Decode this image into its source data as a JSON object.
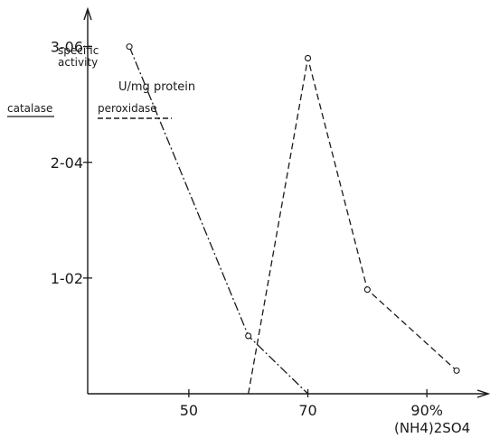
{
  "chart_data": {
    "type": "line",
    "ylabel_line1": "specific",
    "ylabel_line2": "activity",
    "ylabel_units": "U/mg protein",
    "xlabel": "(NH4)2SO4",
    "x_ticks": [
      "50",
      "70",
      "90%"
    ],
    "x_tick_values": [
      50,
      70,
      90
    ],
    "xlim": [
      33,
      100
    ],
    "y_tick_labels": [
      "3-06",
      "2-04",
      "1-02"
    ],
    "ylim": [
      0,
      3.2
    ],
    "scale_headers": {
      "left": "catalase",
      "right": "peroxidase"
    },
    "series": [
      {
        "name": "catalase",
        "style": "dash-dot",
        "color": "#1a1a1a",
        "x": [
          40,
          60,
          70
        ],
        "y": [
          3.0,
          0.5,
          0.0
        ]
      },
      {
        "name": "peroxidase",
        "style": "dashed",
        "color": "#1a1a1a",
        "x": [
          60,
          70,
          80,
          95
        ],
        "y": [
          0.0,
          2.9,
          0.9,
          0.2
        ]
      }
    ]
  }
}
